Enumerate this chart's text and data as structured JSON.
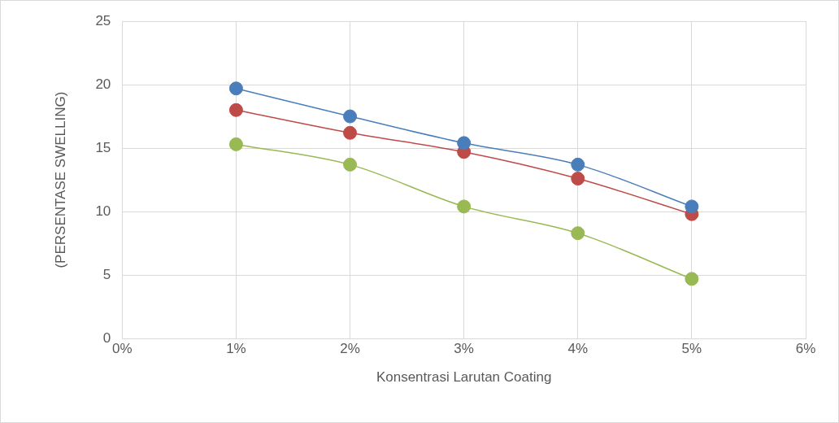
{
  "chart_data": {
    "type": "line",
    "xlabel": "Konsentrasi Larutan Coating",
    "ylabel": "(PERSENTASE SWELLING)",
    "x": [
      1,
      2,
      3,
      4,
      5
    ],
    "series": [
      {
        "color": "#4a7ebb",
        "values": [
          19.7,
          17.5,
          15.4,
          13.7,
          10.4
        ]
      },
      {
        "color": "#be4b48",
        "values": [
          18.0,
          16.2,
          14.7,
          12.6,
          9.8
        ]
      },
      {
        "color": "#98b954",
        "values": [
          15.3,
          13.7,
          10.4,
          8.3,
          4.7
        ]
      }
    ],
    "xlim": [
      0,
      6
    ],
    "xticks": [
      {
        "value": 0,
        "label": "0%"
      },
      {
        "value": 1,
        "label": "1%"
      },
      {
        "value": 2,
        "label": "2%"
      },
      {
        "value": 3,
        "label": "3%"
      },
      {
        "value": 4,
        "label": "4%"
      },
      {
        "value": 5,
        "label": "5%"
      },
      {
        "value": 6,
        "label": "6%"
      }
    ],
    "ylim": [
      0,
      25
    ],
    "yticks": [
      0,
      5,
      10,
      15,
      20,
      25
    ],
    "grid": true,
    "legend": false,
    "marker": "circle",
    "line_style": "solid"
  }
}
